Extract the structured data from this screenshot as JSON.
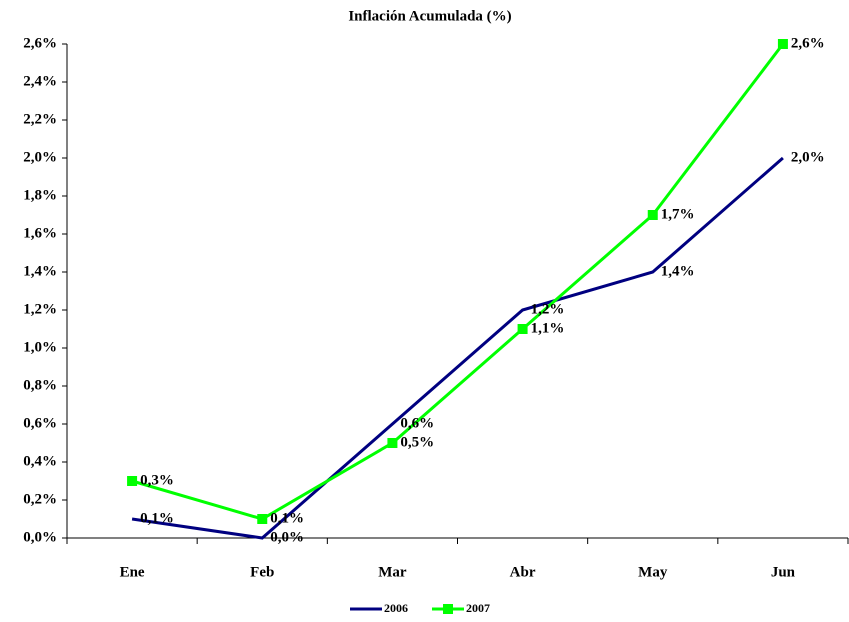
{
  "chart_data": {
    "type": "line",
    "title": "Inflación Acumulada (%)",
    "categories": [
      "Ene",
      "Feb",
      "Mar",
      "Abr",
      "May",
      "Jun"
    ],
    "series": [
      {
        "name": "2006",
        "color": "#000080",
        "values": [
          0.1,
          0.0,
          0.6,
          1.2,
          1.4,
          2.0
        ],
        "value_labels": [
          "0,1%",
          "0,0%",
          "0,6%",
          "1,2%",
          "1,4%",
          "2,0%"
        ]
      },
      {
        "name": "2007",
        "color": "#00ff00",
        "marker": "square",
        "values": [
          0.3,
          0.1,
          0.5,
          1.1,
          1.7,
          2.6
        ],
        "value_labels": [
          "0,3%",
          "0,1%",
          "0,5%",
          "1,1%",
          "1,7%",
          "2,6%"
        ]
      }
    ],
    "ylim": [
      0,
      2.6
    ],
    "yticks": [
      {
        "value": 0,
        "label": "0,0%"
      },
      {
        "value": 0.2,
        "label": "0,2%"
      },
      {
        "value": 0.4,
        "label": "0,4%"
      },
      {
        "value": 0.6,
        "label": "0,6%"
      },
      {
        "value": 0.8,
        "label": "0,8%"
      },
      {
        "value": 1.0,
        "label": "1,0%"
      },
      {
        "value": 1.2,
        "label": "1,2%"
      },
      {
        "value": 1.4,
        "label": "1,4%"
      },
      {
        "value": 1.6,
        "label": "1,6%"
      },
      {
        "value": 1.8,
        "label": "1,8%"
      },
      {
        "value": 2.0,
        "label": "2,0%"
      },
      {
        "value": 2.2,
        "label": "2,2%"
      },
      {
        "value": 2.4,
        "label": "2,4%"
      },
      {
        "value": 2.6,
        "label": "2,6%"
      }
    ],
    "legend": "bottom",
    "grid": false
  }
}
